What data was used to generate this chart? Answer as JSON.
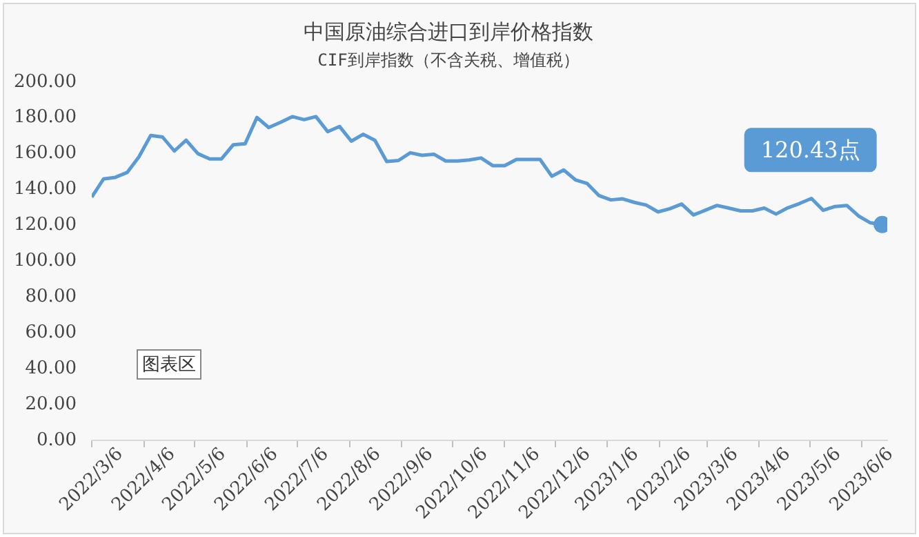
{
  "chart_data": {
    "type": "line",
    "title": "中国原油综合进口到岸价格指数",
    "subtitle": "CIF到岸指数（不含关税、增值税）",
    "x": [
      "2022-03-06",
      "2022-03-13",
      "2022-03-20",
      "2022-03-27",
      "2022-04-03",
      "2022-04-10",
      "2022-04-17",
      "2022-04-24",
      "2022-05-01",
      "2022-05-08",
      "2022-05-15",
      "2022-05-22",
      "2022-05-29",
      "2022-06-05",
      "2022-06-12",
      "2022-06-19",
      "2022-06-26",
      "2022-07-03",
      "2022-07-10",
      "2022-07-17",
      "2022-07-24",
      "2022-07-31",
      "2022-08-07",
      "2022-08-14",
      "2022-08-21",
      "2022-08-28",
      "2022-09-04",
      "2022-09-11",
      "2022-09-18",
      "2022-09-25",
      "2022-10-02",
      "2022-10-09",
      "2022-10-16",
      "2022-10-23",
      "2022-10-30",
      "2022-11-06",
      "2022-11-13",
      "2022-11-20",
      "2022-11-27",
      "2022-12-04",
      "2022-12-11",
      "2022-12-18",
      "2022-12-25",
      "2023-01-01",
      "2023-01-08",
      "2023-01-15",
      "2023-01-22",
      "2023-01-29",
      "2023-02-05",
      "2023-02-12",
      "2023-02-19",
      "2023-02-26",
      "2023-03-05",
      "2023-03-12",
      "2023-03-19",
      "2023-03-26",
      "2023-04-02",
      "2023-04-09",
      "2023-04-16",
      "2023-04-23",
      "2023-04-30",
      "2023-05-07",
      "2023-05-14",
      "2023-05-21",
      "2023-05-28",
      "2023-06-04",
      "2023-06-11",
      "2023-06-18"
    ],
    "series": [
      {
        "color": "#5b9bd5",
        "values": [
          135.7,
          145.9,
          146.8,
          149.5,
          158.2,
          170.2,
          169.3,
          161.5,
          167.5,
          160,
          157.1,
          157.1,
          165,
          165.5,
          180.2,
          174.6,
          177.5,
          180.7,
          179,
          180.7,
          172.3,
          175.2,
          167,
          170.8,
          167.5,
          155.6,
          156.2,
          160.5,
          159.1,
          159.7,
          155.9,
          155.9,
          156.5,
          157.6,
          153.3,
          153.3,
          156.8,
          156.8,
          156.8,
          147.4,
          150.9,
          145.4,
          143.3,
          136.6,
          134.2,
          134.8,
          132.8,
          131.3,
          127.5,
          129.3,
          131.9,
          125.8,
          128.4,
          131.1,
          129.6,
          128.1,
          128.1,
          129.6,
          126.3,
          129.8,
          132.2,
          135,
          128.4,
          130.5,
          131.1,
          125.2,
          121.4,
          120.43
        ],
        "value_labels": [
          null,
          null,
          null,
          null,
          null,
          null,
          null,
          null,
          null,
          null,
          null,
          null,
          null,
          null,
          null,
          null,
          null,
          null,
          null,
          null,
          null,
          null,
          null,
          null,
          null,
          null,
          null,
          null,
          null,
          null,
          null,
          null,
          null,
          null,
          null,
          null,
          null,
          null,
          null,
          null,
          null,
          null,
          null,
          null,
          null,
          null,
          null,
          null,
          null,
          null,
          null,
          null,
          null,
          null,
          null,
          null,
          null,
          null,
          null,
          null,
          null,
          null,
          null,
          null,
          null,
          null,
          null,
          "120.43点"
        ]
      }
    ],
    "xlim": [
      "2022-03-06",
      "2023-06-21"
    ],
    "xticks": [
      {
        "value": "2022-03-06",
        "label": "2022/3/6"
      },
      {
        "value": "2022-04-06",
        "label": "2022/4/6"
      },
      {
        "value": "2022-05-06",
        "label": "2022/5/6"
      },
      {
        "value": "2022-06-06",
        "label": "2022/6/6"
      },
      {
        "value": "2022-07-06",
        "label": "2022/7/6"
      },
      {
        "value": "2022-08-06",
        "label": "2022/8/6"
      },
      {
        "value": "2022-09-06",
        "label": "2022/9/6"
      },
      {
        "value": "2022-10-06",
        "label": "2022/10/6"
      },
      {
        "value": "2022-11-06",
        "label": "2022/11/6"
      },
      {
        "value": "2022-12-06",
        "label": "2022/12/6"
      },
      {
        "value": "2023-01-06",
        "label": "2023/1/6"
      },
      {
        "value": "2023-02-06",
        "label": "2023/2/6"
      },
      {
        "value": "2023-03-06",
        "label": "2023/3/6"
      },
      {
        "value": "2023-04-06",
        "label": "2023/4/6"
      },
      {
        "value": "2023-05-06",
        "label": "2023/5/6"
      },
      {
        "value": "2023-06-06",
        "label": "2023/6/6"
      }
    ],
    "ylim": [
      0,
      200
    ],
    "yticks": [
      {
        "value": 0,
        "label": "0.00"
      },
      {
        "value": 20,
        "label": "20.00"
      },
      {
        "value": 40,
        "label": "40.00"
      },
      {
        "value": 60,
        "label": "60.00"
      },
      {
        "value": 80,
        "label": "80.00"
      },
      {
        "value": 100,
        "label": "100.00"
      },
      {
        "value": 120,
        "label": "120.00"
      },
      {
        "value": 140,
        "label": "140.00"
      },
      {
        "value": 160,
        "label": "160.00"
      },
      {
        "value": 180,
        "label": "180.00"
      },
      {
        "value": 200,
        "label": "200.00"
      }
    ],
    "annotations": [
      "图表区"
    ],
    "grid": false,
    "legend": false
  }
}
